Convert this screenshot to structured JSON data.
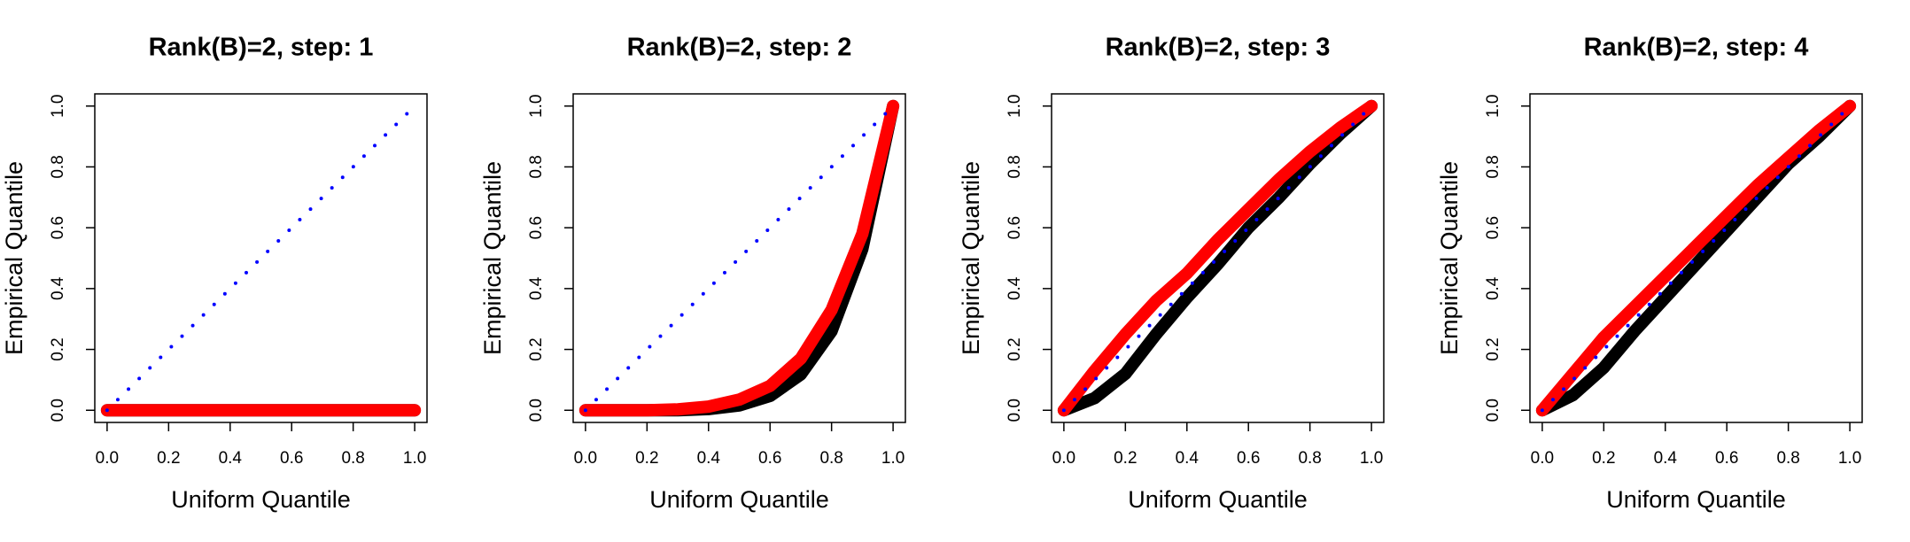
{
  "chart_data": [
    {
      "type": "line",
      "title": "Rank(B)=2, step: 1",
      "xlabel": "Uniform Quantile",
      "ylabel": "Empirical Quantile",
      "x": [
        0,
        0.1,
        0.2,
        0.3,
        0.4,
        0.5,
        0.6,
        0.7,
        0.8,
        0.9,
        1
      ],
      "series": [
        {
          "color": "#000000",
          "style": "solid",
          "values": [
            0,
            0,
            0,
            0,
            0,
            0,
            0,
            0,
            0,
            0,
            0
          ]
        },
        {
          "color": "#ff0000",
          "style": "solid",
          "values": [
            0,
            0,
            0,
            0,
            0,
            0,
            0,
            0,
            0,
            0,
            0
          ]
        },
        {
          "color": "#0000ff",
          "style": "dotted",
          "values": [
            0,
            0.1,
            0.2,
            0.3,
            0.4,
            0.5,
            0.6,
            0.7,
            0.8,
            0.9,
            1
          ]
        }
      ],
      "xlim": [
        -0.04,
        1.04
      ],
      "ylim": [
        -0.04,
        1.04
      ],
      "xticks": [
        {
          "value": 0,
          "label": "0.0"
        },
        0.2,
        0.4,
        0.6,
        0.8,
        {
          "value": 1,
          "label": "1.0"
        }
      ],
      "yticks": [
        {
          "value": 0,
          "label": "0.0"
        },
        0.2,
        0.4,
        0.6,
        0.8,
        {
          "value": 1,
          "label": "1.0"
        }
      ]
    },
    {
      "type": "line",
      "title": "Rank(B)=2, step: 2",
      "xlabel": "Uniform Quantile",
      "ylabel": "Empirical Quantile",
      "x": [
        0,
        0.1,
        0.2,
        0.3,
        0.4,
        0.5,
        0.6,
        0.7,
        0.8,
        0.9,
        1
      ],
      "series": [
        {
          "color": "#000000",
          "style": "solid",
          "values": [
            0,
            0,
            0,
            0,
            0.004,
            0.016,
            0.047,
            0.118,
            0.26,
            0.53,
            1
          ]
        },
        {
          "color": "#ff0000",
          "style": "solid",
          "values": [
            0,
            0,
            0,
            0.003,
            0.012,
            0.035,
            0.08,
            0.17,
            0.33,
            0.58,
            1
          ]
        },
        {
          "color": "#0000ff",
          "style": "dotted",
          "values": [
            0,
            0.1,
            0.2,
            0.3,
            0.4,
            0.5,
            0.6,
            0.7,
            0.8,
            0.9,
            1
          ]
        }
      ],
      "xlim": [
        -0.04,
        1.04
      ],
      "ylim": [
        -0.04,
        1.04
      ],
      "xticks": [
        {
          "value": 0,
          "label": "0.0"
        },
        0.2,
        0.4,
        0.6,
        0.8,
        {
          "value": 1,
          "label": "1.0"
        }
      ],
      "yticks": [
        {
          "value": 0,
          "label": "0.0"
        },
        0.2,
        0.4,
        0.6,
        0.8,
        {
          "value": 1,
          "label": "1.0"
        }
      ]
    },
    {
      "type": "line",
      "title": "Rank(B)=2, step: 3",
      "xlabel": "Uniform Quantile",
      "ylabel": "Empirical Quantile",
      "x": [
        0,
        0.1,
        0.2,
        0.3,
        0.4,
        0.5,
        0.6,
        0.7,
        0.8,
        0.9,
        1
      ],
      "series": [
        {
          "color": "#000000",
          "style": "solid",
          "values": [
            0,
            0.04,
            0.12,
            0.25,
            0.37,
            0.48,
            0.6,
            0.7,
            0.81,
            0.91,
            1
          ]
        },
        {
          "color": "#ff0000",
          "style": "solid",
          "values": [
            0,
            0.13,
            0.25,
            0.36,
            0.45,
            0.56,
            0.66,
            0.76,
            0.85,
            0.93,
            1
          ]
        },
        {
          "color": "#0000ff",
          "style": "dotted",
          "values": [
            0,
            0.1,
            0.2,
            0.3,
            0.4,
            0.5,
            0.6,
            0.7,
            0.8,
            0.9,
            1
          ]
        }
      ],
      "xlim": [
        -0.04,
        1.04
      ],
      "ylim": [
        -0.04,
        1.04
      ],
      "xticks": [
        {
          "value": 0,
          "label": "0.0"
        },
        0.2,
        0.4,
        0.6,
        0.8,
        {
          "value": 1,
          "label": "1.0"
        }
      ],
      "yticks": [
        {
          "value": 0,
          "label": "0.0"
        },
        0.2,
        0.4,
        0.6,
        0.8,
        {
          "value": 1,
          "label": "1.0"
        }
      ]
    },
    {
      "type": "line",
      "title": "Rank(B)=2, step: 4",
      "xlabel": "Uniform Quantile",
      "ylabel": "Empirical Quantile",
      "x": [
        0,
        0.1,
        0.2,
        0.3,
        0.4,
        0.5,
        0.6,
        0.7,
        0.8,
        0.9,
        1
      ],
      "series": [
        {
          "color": "#000000",
          "style": "solid",
          "values": [
            0,
            0.05,
            0.14,
            0.26,
            0.37,
            0.48,
            0.59,
            0.7,
            0.81,
            0.9,
            1
          ]
        },
        {
          "color": "#ff0000",
          "style": "solid",
          "values": [
            0,
            0.12,
            0.24,
            0.34,
            0.44,
            0.54,
            0.64,
            0.74,
            0.83,
            0.92,
            1
          ]
        },
        {
          "color": "#0000ff",
          "style": "dotted",
          "values": [
            0,
            0.1,
            0.2,
            0.3,
            0.4,
            0.5,
            0.6,
            0.7,
            0.8,
            0.9,
            1
          ]
        }
      ],
      "xlim": [
        -0.04,
        1.04
      ],
      "ylim": [
        -0.04,
        1.04
      ],
      "xticks": [
        {
          "value": 0,
          "label": "0.0"
        },
        0.2,
        0.4,
        0.6,
        0.8,
        {
          "value": 1,
          "label": "1.0"
        }
      ],
      "yticks": [
        {
          "value": 0,
          "label": "0.0"
        },
        0.2,
        0.4,
        0.6,
        0.8,
        {
          "value": 1,
          "label": "1.0"
        }
      ]
    }
  ]
}
